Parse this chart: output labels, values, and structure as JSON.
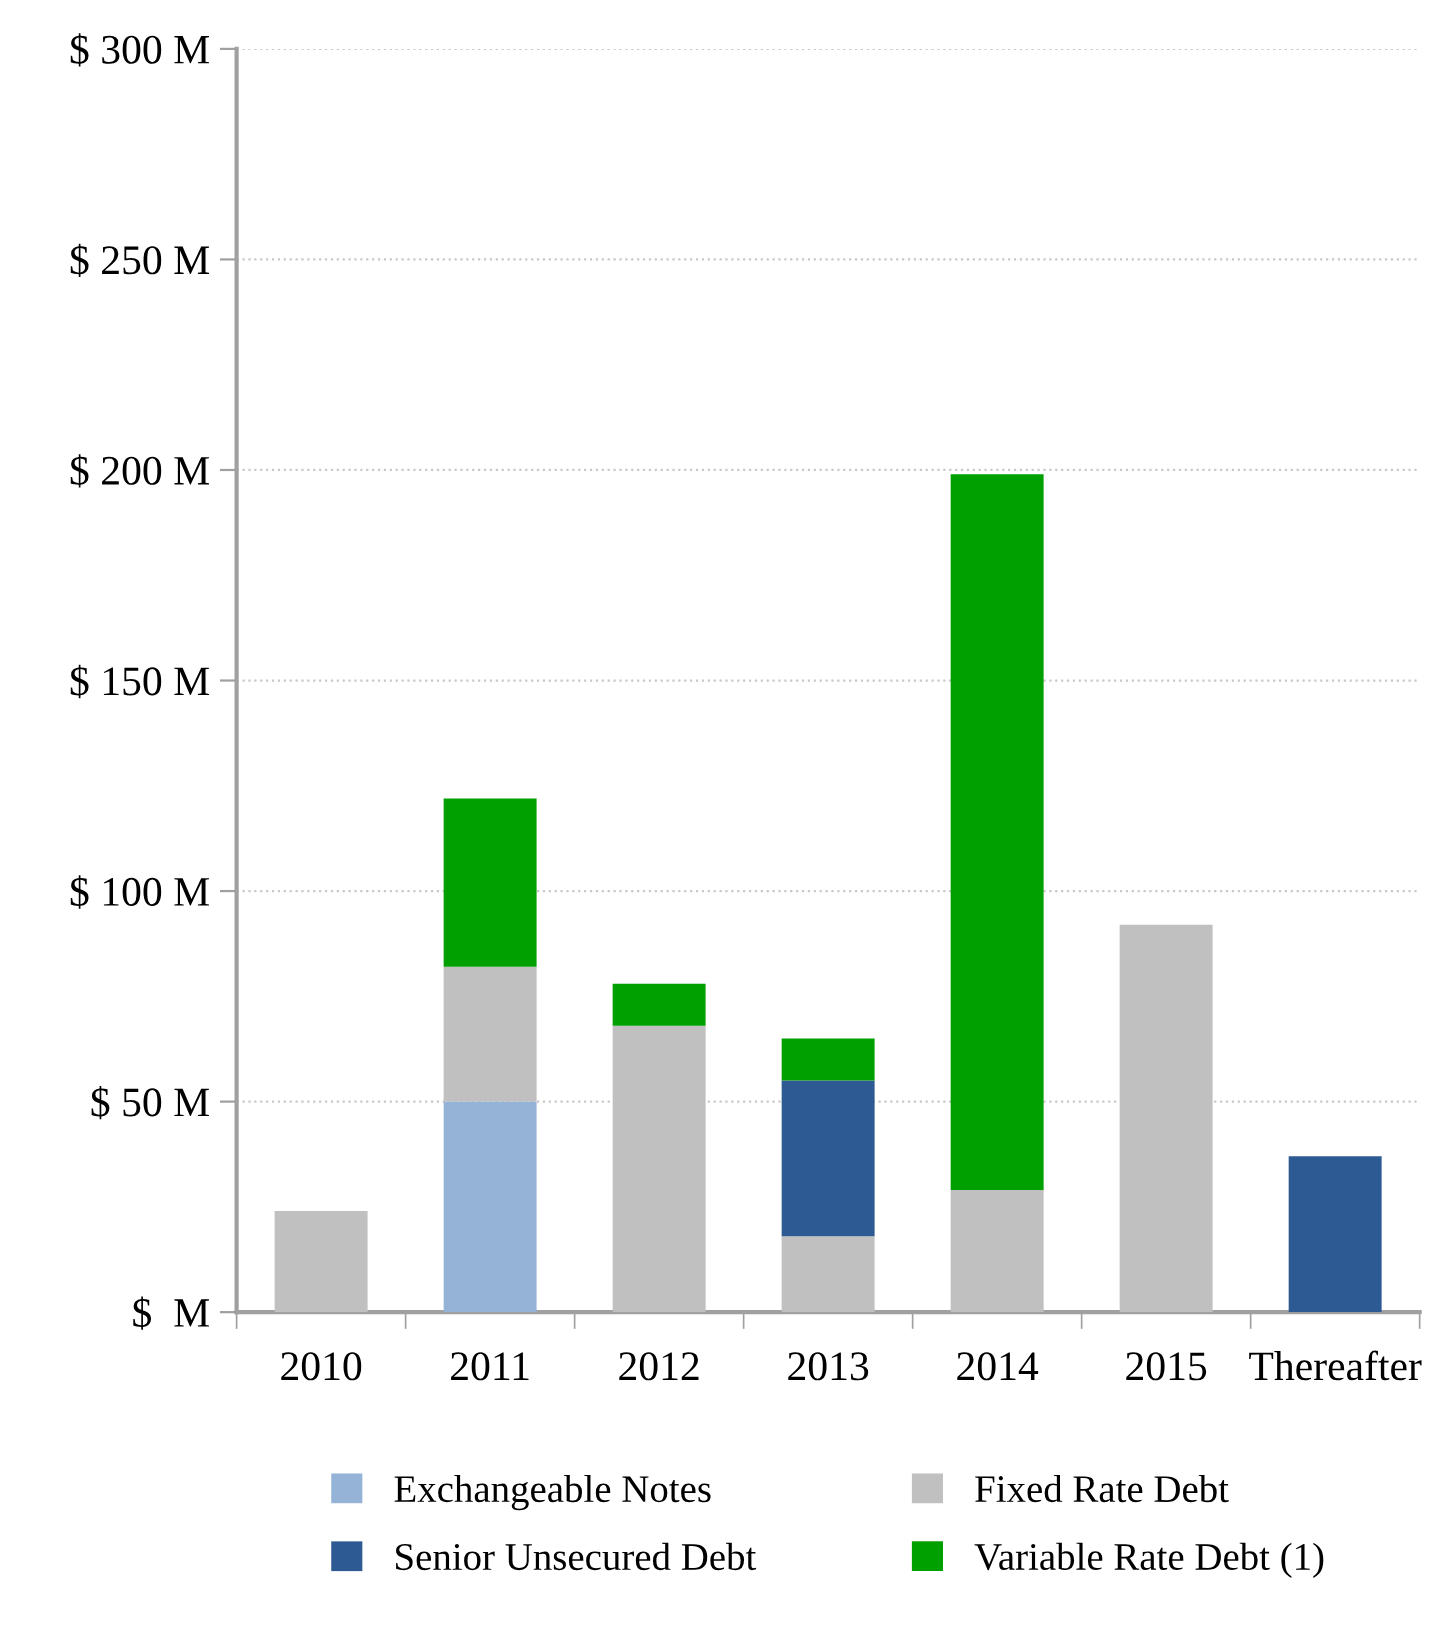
{
  "chart_data": {
    "type": "bar",
    "stacked": true,
    "categories": [
      "2010",
      "2011",
      "2012",
      "2013",
      "2014",
      "2015",
      "Thereafter"
    ],
    "series": [
      {
        "name": "Exchangeable Notes",
        "color": "#95b3d7",
        "values": [
          null,
          50,
          null,
          null,
          null,
          null,
          null
        ]
      },
      {
        "name": "Fixed Rate Debt",
        "color": "#c0c0c0",
        "values": [
          24,
          32,
          68,
          18,
          29,
          92,
          null
        ]
      },
      {
        "name": "Senior Unsecured Debt",
        "color": "#2e5a93",
        "values": [
          null,
          null,
          null,
          37,
          null,
          null,
          37
        ]
      },
      {
        "name": "Variable Rate Debt (1)",
        "color": "#00a000",
        "values": [
          null,
          40,
          10,
          10,
          170,
          null,
          null
        ]
      }
    ],
    "ylim": [
      0,
      300
    ],
    "yticks": [
      {
        "value": 0,
        "label": "$  M"
      },
      {
        "value": 50,
        "label": "$ 50 M"
      },
      {
        "value": 100,
        "label": "$ 100 M"
      },
      {
        "value": 150,
        "label": "$ 150 M"
      },
      {
        "value": 200,
        "label": "$ 200 M"
      },
      {
        "value": 250,
        "label": "$ 250 M"
      },
      {
        "value": 300,
        "label": "$ 300 M"
      }
    ],
    "grid": "y",
    "legend": "bottom"
  }
}
